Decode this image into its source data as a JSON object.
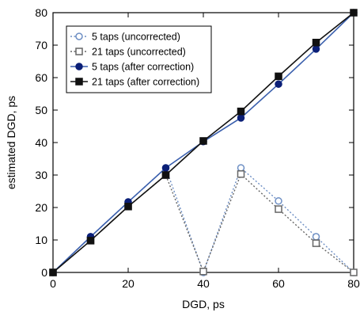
{
  "chart_data": {
    "type": "line",
    "xlabel": "DGD, ps",
    "ylabel": "estimated DGD, ps",
    "xlim": [
      0,
      80
    ],
    "ylim": [
      0,
      80
    ],
    "xticks": [
      0,
      20,
      40,
      60,
      80
    ],
    "yticks": [
      0,
      10,
      20,
      30,
      40,
      50,
      60,
      70,
      80
    ],
    "grid": false,
    "legend_position": "top-left",
    "x": [
      0,
      10,
      20,
      30,
      40,
      50,
      60,
      70,
      80
    ],
    "series": [
      {
        "name": "5 taps (uncorrected)",
        "values": [
          0,
          11,
          21.7,
          32.2,
          0,
          32.2,
          22,
          11,
          0
        ],
        "color": "#6e8fc4",
        "line_style": "dotted",
        "marker": "open-circle"
      },
      {
        "name": "21 taps (uncorrected)",
        "values": [
          0,
          9.8,
          20.3,
          30,
          0.3,
          30.3,
          19.5,
          9,
          0
        ],
        "color": "#666666",
        "line_style": "dotted",
        "marker": "open-square"
      },
      {
        "name": "5 taps (after correction)",
        "values": [
          0,
          11,
          21.7,
          32.2,
          40.3,
          47.6,
          58,
          68.8,
          80
        ],
        "color": "#3a5fad",
        "marker_color": "#0b1f77",
        "line_style": "solid",
        "marker": "filled-circle"
      },
      {
        "name": "21 taps (after correction)",
        "values": [
          0,
          9.8,
          20.3,
          30,
          40.5,
          49.6,
          60.4,
          70.8,
          80
        ],
        "color": "#111111",
        "line_style": "solid",
        "marker": "filled-square"
      }
    ]
  }
}
